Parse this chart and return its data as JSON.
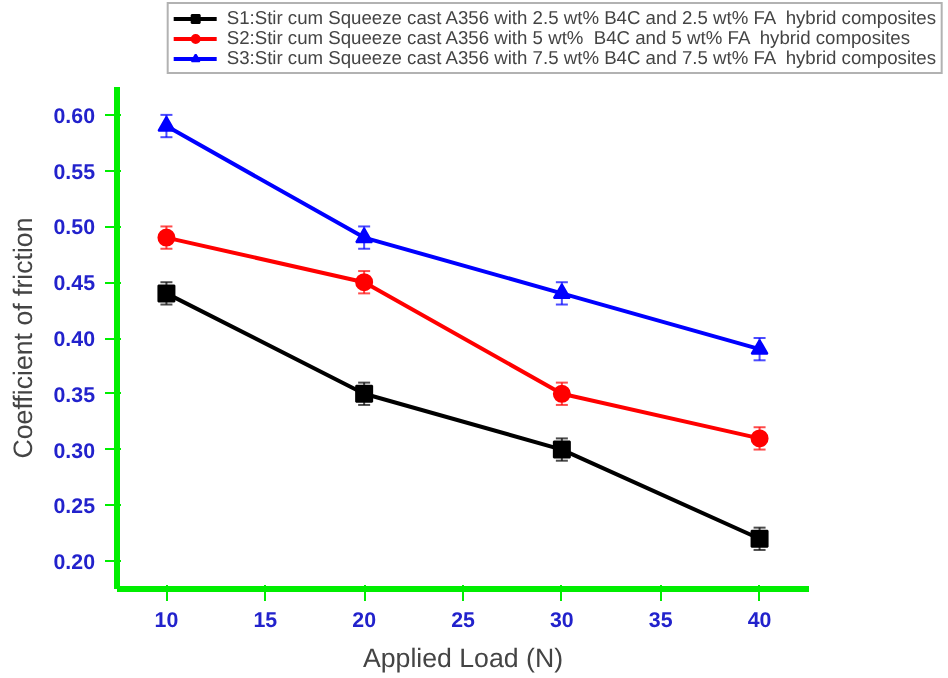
{
  "chart_data": {
    "type": "line",
    "xlabel": "Applied Load (N)",
    "ylabel": "Coefficient of friction",
    "x": [
      10,
      20,
      30,
      40
    ],
    "series": [
      {
        "name": "S1:Stir cum Squeeze cast A356 with 2.5 wt% B4C and 2.5 wt% FA  hybrid composites",
        "color": "#000000",
        "marker": "square",
        "values": [
          0.44,
          0.35,
          0.3,
          0.22
        ],
        "errors": [
          0.01,
          0.01,
          0.01,
          0.01
        ]
      },
      {
        "name": "S2:Stir cum Squeeze cast A356 with 5 wt%  B4C and 5 wt% FA  hybrid composites",
        "color": "#ff0000",
        "marker": "circle",
        "values": [
          0.49,
          0.45,
          0.35,
          0.31
        ],
        "errors": [
          0.01,
          0.01,
          0.01,
          0.01
        ]
      },
      {
        "name": "S3:Stir cum Squeeze cast A356 with 7.5 wt% B4C and 7.5 wt% FA  hybrid composites",
        "color": "#0000ff",
        "marker": "triangle",
        "values": [
          0.59,
          0.49,
          0.44,
          0.39
        ],
        "errors": [
          0.01,
          0.01,
          0.01,
          0.01
        ]
      }
    ],
    "xlim": [
      7.5,
      42.5
    ],
    "xticks": [
      10,
      15,
      20,
      25,
      30,
      35,
      40
    ],
    "ylim": [
      0.175,
      0.625
    ],
    "yticks": [
      {
        "value": 0.2,
        "label": "0.20"
      },
      {
        "value": 0.25,
        "label": "0.25"
      },
      {
        "value": 0.3,
        "label": "0.30"
      },
      {
        "value": 0.35,
        "label": "0.35"
      },
      {
        "value": 0.4,
        "label": "0.40"
      },
      {
        "value": 0.45,
        "label": "0.45"
      },
      {
        "value": 0.5,
        "label": "0.50"
      },
      {
        "value": 0.55,
        "label": "0.55"
      },
      {
        "value": 0.6,
        "label": "0.60"
      }
    ],
    "grid": false,
    "legend": "top right",
    "line_style": "solid"
  }
}
